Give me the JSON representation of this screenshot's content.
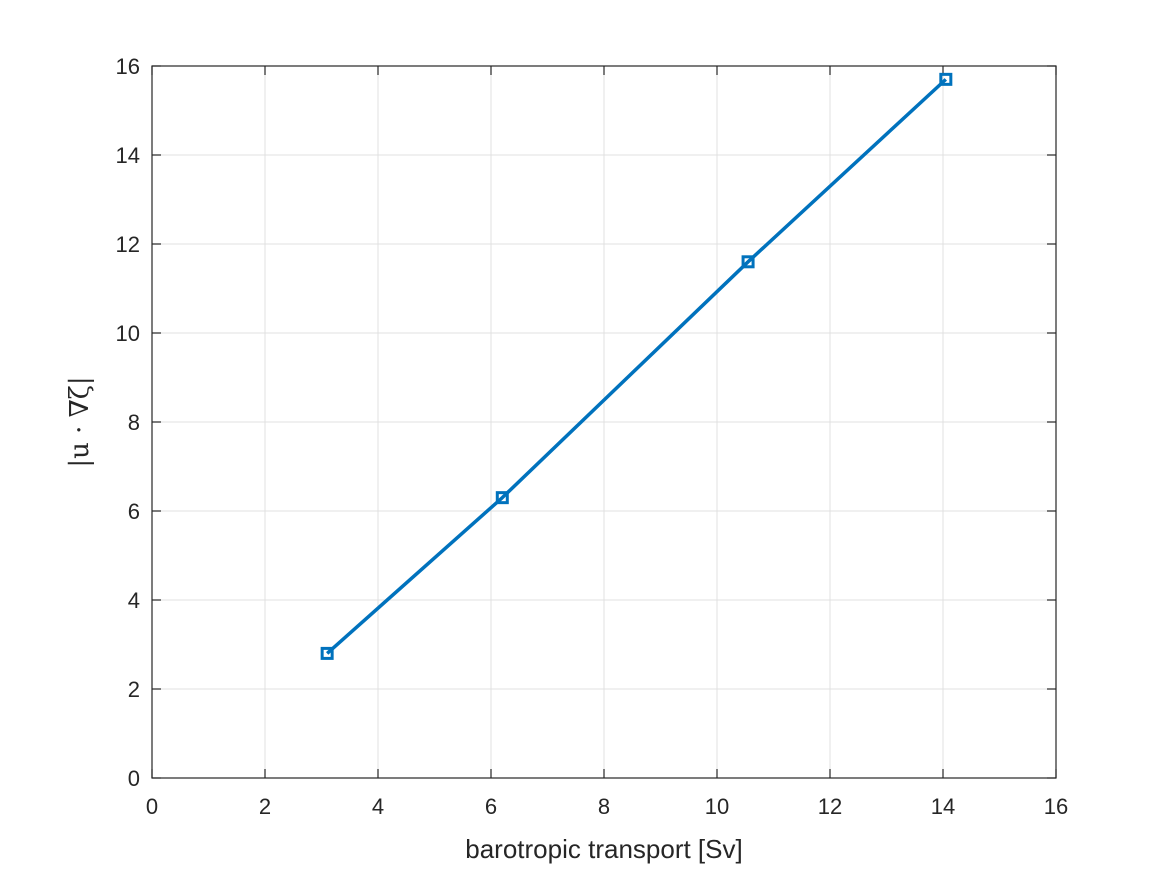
{
  "chart_data": {
    "type": "line",
    "xlabel": "barotropic transport [Sv]",
    "ylabel": "|u · ∇ζ|",
    "xlim": [
      0,
      16
    ],
    "ylim": [
      0,
      16
    ],
    "xticks": [
      0,
      2,
      4,
      6,
      8,
      10,
      12,
      14,
      16
    ],
    "yticks": [
      0,
      2,
      4,
      6,
      8,
      10,
      12,
      14,
      16
    ],
    "grid": true,
    "series": [
      {
        "x": [
          3.1,
          6.2,
          10.55,
          14.05
        ],
        "y": [
          2.8,
          6.3,
          11.6,
          15.7
        ],
        "color": "#0072BD",
        "marker": "square"
      }
    ]
  }
}
